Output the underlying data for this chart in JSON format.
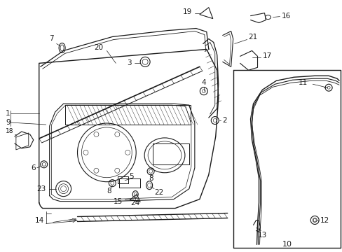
{
  "bg_color": "#ffffff",
  "line_color": "#1a1a1a",
  "fig_width": 4.89,
  "fig_height": 3.6,
  "dpi": 100,
  "parts": {
    "labels": [
      "1",
      "9",
      "2",
      "3",
      "4",
      "5",
      "6",
      "7",
      "8",
      "8",
      "10",
      "11",
      "12",
      "13",
      "14",
      "15",
      "16",
      "17",
      "18",
      "19",
      "20",
      "21",
      "22",
      "23",
      "24"
    ]
  }
}
